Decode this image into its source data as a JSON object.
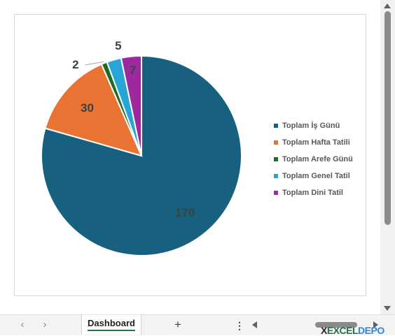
{
  "chart_data": {
    "type": "pie",
    "categories": [
      "Toplam İş Günü",
      "Toplam Hafta Tatili",
      "Toplam Arefe Günü",
      "Toplam Genel Tatil",
      "Toplam Dini Tatil"
    ],
    "values": [
      170,
      30,
      2,
      5,
      7
    ],
    "data_labels": [
      "170",
      "30",
      "2",
      "5",
      "7"
    ],
    "colors": [
      "#17607f",
      "#e87333",
      "#1e6b24",
      "#27a5d6",
      "#9c2a9e"
    ],
    "legend_position": "right",
    "start_angle_deg": 0,
    "direction": "clockwise"
  },
  "sheet_tabs": {
    "active": "Dashboard",
    "add_label": "+",
    "more_label": "⋮"
  },
  "nav": {
    "prev_label": "‹",
    "next_label": "›"
  },
  "logo": {
    "x": "X",
    "excel": "EXCEL",
    "depo": "DEPO"
  }
}
